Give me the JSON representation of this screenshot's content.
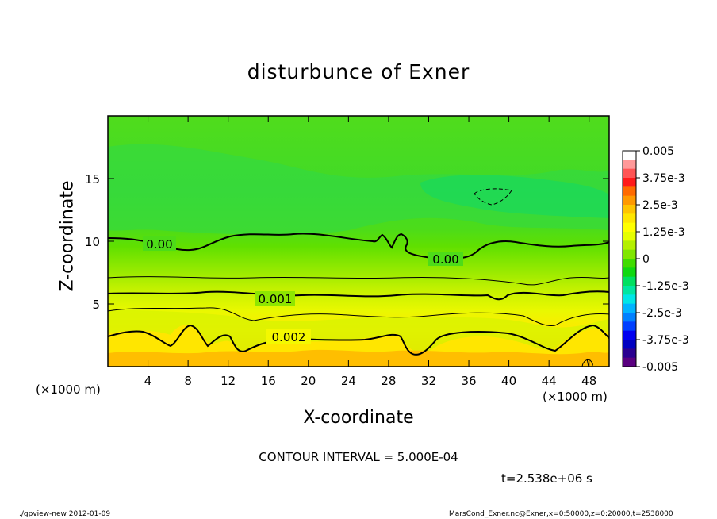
{
  "chart_data": {
    "type": "heatmap",
    "title": "disturbunce of Exner",
    "xlabel": "X-coordinate",
    "ylabel": "Z-coordinate",
    "x_unit": "(×1000 m)",
    "y_unit": "(×1000 m)",
    "xlim": [
      0,
      50
    ],
    "ylim": [
      0,
      20
    ],
    "x_ticks": [
      4,
      8,
      12,
      16,
      20,
      24,
      28,
      32,
      36,
      40,
      44,
      48
    ],
    "y_ticks": [
      5,
      10,
      15
    ],
    "colorbar": {
      "labels": [
        "0.005",
        "3.75e-3",
        "2.5e-3",
        "1.25e-3",
        "0",
        "-1.25e-3",
        "-2.5e-3",
        "-3.75e-3",
        "-0.005"
      ],
      "colors": [
        "#ffffff",
        "#ff9999",
        "#ff5555",
        "#ff1a1a",
        "#ff6a00",
        "#ff9900",
        "#ffc400",
        "#ffe600",
        "#ffff00",
        "#e6ff00",
        "#b4f000",
        "#80e600",
        "#40dc00",
        "#10d810",
        "#00e060",
        "#00e6a0",
        "#00e6e6",
        "#00b4ff",
        "#0080ff",
        "#0040ff",
        "#0000f0",
        "#0000c0",
        "#2a0090",
        "#5a0080"
      ]
    },
    "contours": [
      {
        "level": "0.00",
        "style": "solid"
      },
      {
        "level": "0.001",
        "style": "solid"
      },
      {
        "level": "0.002",
        "style": "solid"
      }
    ],
    "contour_interval": "5.000E-04"
  },
  "texts": {
    "interval_line": "CONTOUR INTERVAL = 5.000E-04",
    "time_line": "t=2.538e+06 s",
    "footer_left": "./gpview-new   2012-01-09",
    "footer_right": "MarsCond_Exner.nc@Exner,x=0:50000,z=0:20000,t=2538000"
  }
}
